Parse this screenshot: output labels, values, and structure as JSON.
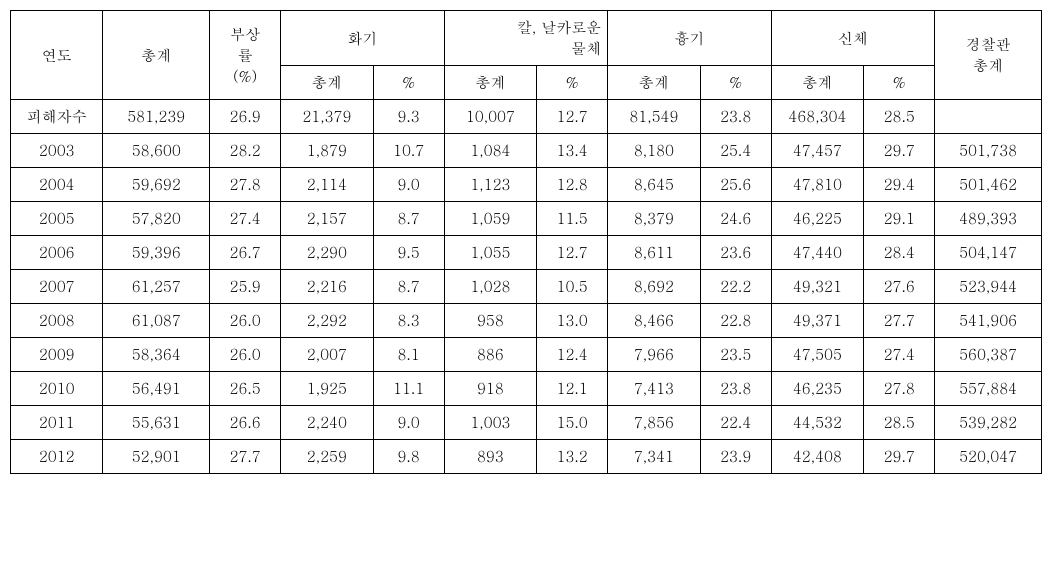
{
  "headers": {
    "year": "연도",
    "total": "총계",
    "injury_rate": "부상\n률\n(%)",
    "firearm": "화기",
    "knife": "칼, 날카로운\n물체",
    "blunt": "흉기",
    "body": "신체",
    "police": "경찰관\n총계",
    "sub_total": "총계",
    "sub_pct": "%"
  },
  "rows": [
    {
      "year": "피해자수",
      "total": "581,239",
      "rate": "26.9",
      "fa_t": "21,379",
      "fa_p": "9.3",
      "kn_t": "10,007",
      "kn_p": "12.7",
      "bl_t": "81,549",
      "bl_p": "23.8",
      "bo_t": "468,304",
      "bo_p": "28.5",
      "police": ""
    },
    {
      "year": "2003",
      "total": "58,600",
      "rate": "28.2",
      "fa_t": "1,879",
      "fa_p": "10.7",
      "kn_t": "1,084",
      "kn_p": "13.4",
      "bl_t": "8,180",
      "bl_p": "25.4",
      "bo_t": "47,457",
      "bo_p": "29.7",
      "police": "501,738"
    },
    {
      "year": "2004",
      "total": "59,692",
      "rate": "27.8",
      "fa_t": "2,114",
      "fa_p": "9.0",
      "kn_t": "1,123",
      "kn_p": "12.8",
      "bl_t": "8,645",
      "bl_p": "25.6",
      "bo_t": "47,810",
      "bo_p": "29.4",
      "police": "501,462"
    },
    {
      "year": "2005",
      "total": "57,820",
      "rate": "27.4",
      "fa_t": "2,157",
      "fa_p": "8.7",
      "kn_t": "1,059",
      "kn_p": "11.5",
      "bl_t": "8,379",
      "bl_p": "24.6",
      "bo_t": "46,225",
      "bo_p": "29.1",
      "police": "489,393"
    },
    {
      "year": "2006",
      "total": "59,396",
      "rate": "26.7",
      "fa_t": "2,290",
      "fa_p": "9.5",
      "kn_t": "1,055",
      "kn_p": "12.7",
      "bl_t": "8,611",
      "bl_p": "23.6",
      "bo_t": "47,440",
      "bo_p": "28.4",
      "police": "504,147"
    },
    {
      "year": "2007",
      "total": "61,257",
      "rate": "25.9",
      "fa_t": "2,216",
      "fa_p": "8.7",
      "kn_t": "1,028",
      "kn_p": "10.5",
      "bl_t": "8,692",
      "bl_p": "22.2",
      "bo_t": "49,321",
      "bo_p": "27.6",
      "police": "523,944"
    },
    {
      "year": "2008",
      "total": "61,087",
      "rate": "26.0",
      "fa_t": "2,292",
      "fa_p": "8.3",
      "kn_t": "958",
      "kn_p": "13.0",
      "bl_t": "8,466",
      "bl_p": "22.8",
      "bo_t": "49,371",
      "bo_p": "27.7",
      "police": "541,906"
    },
    {
      "year": "2009",
      "total": "58,364",
      "rate": "26.0",
      "fa_t": "2,007",
      "fa_p": "8.1",
      "kn_t": "886",
      "kn_p": "12.4",
      "bl_t": "7,966",
      "bl_p": "23.5",
      "bo_t": "47,505",
      "bo_p": "27.4",
      "police": "560,387"
    },
    {
      "year": "2010",
      "total": "56,491",
      "rate": "26.5",
      "fa_t": "1,925",
      "fa_p": "11.1",
      "kn_t": "918",
      "kn_p": "12.1",
      "bl_t": "7,413",
      "bl_p": "23.8",
      "bo_t": "46,235",
      "bo_p": "27.8",
      "police": "557,884"
    },
    {
      "year": "2011",
      "total": "55,631",
      "rate": "26.6",
      "fa_t": "2,240",
      "fa_p": "9.0",
      "kn_t": "1,003",
      "kn_p": "15.0",
      "bl_t": "7,856",
      "bl_p": "22.4",
      "bo_t": "44,532",
      "bo_p": "28.5",
      "police": "539,282"
    },
    {
      "year": "2012",
      "total": "52,901",
      "rate": "27.7",
      "fa_t": "2,259",
      "fa_p": "9.8",
      "kn_t": "893",
      "kn_p": "13.2",
      "bl_t": "7,341",
      "bl_p": "23.9",
      "bo_t": "42,408",
      "bo_p": "29.7",
      "police": "520,047"
    }
  ]
}
